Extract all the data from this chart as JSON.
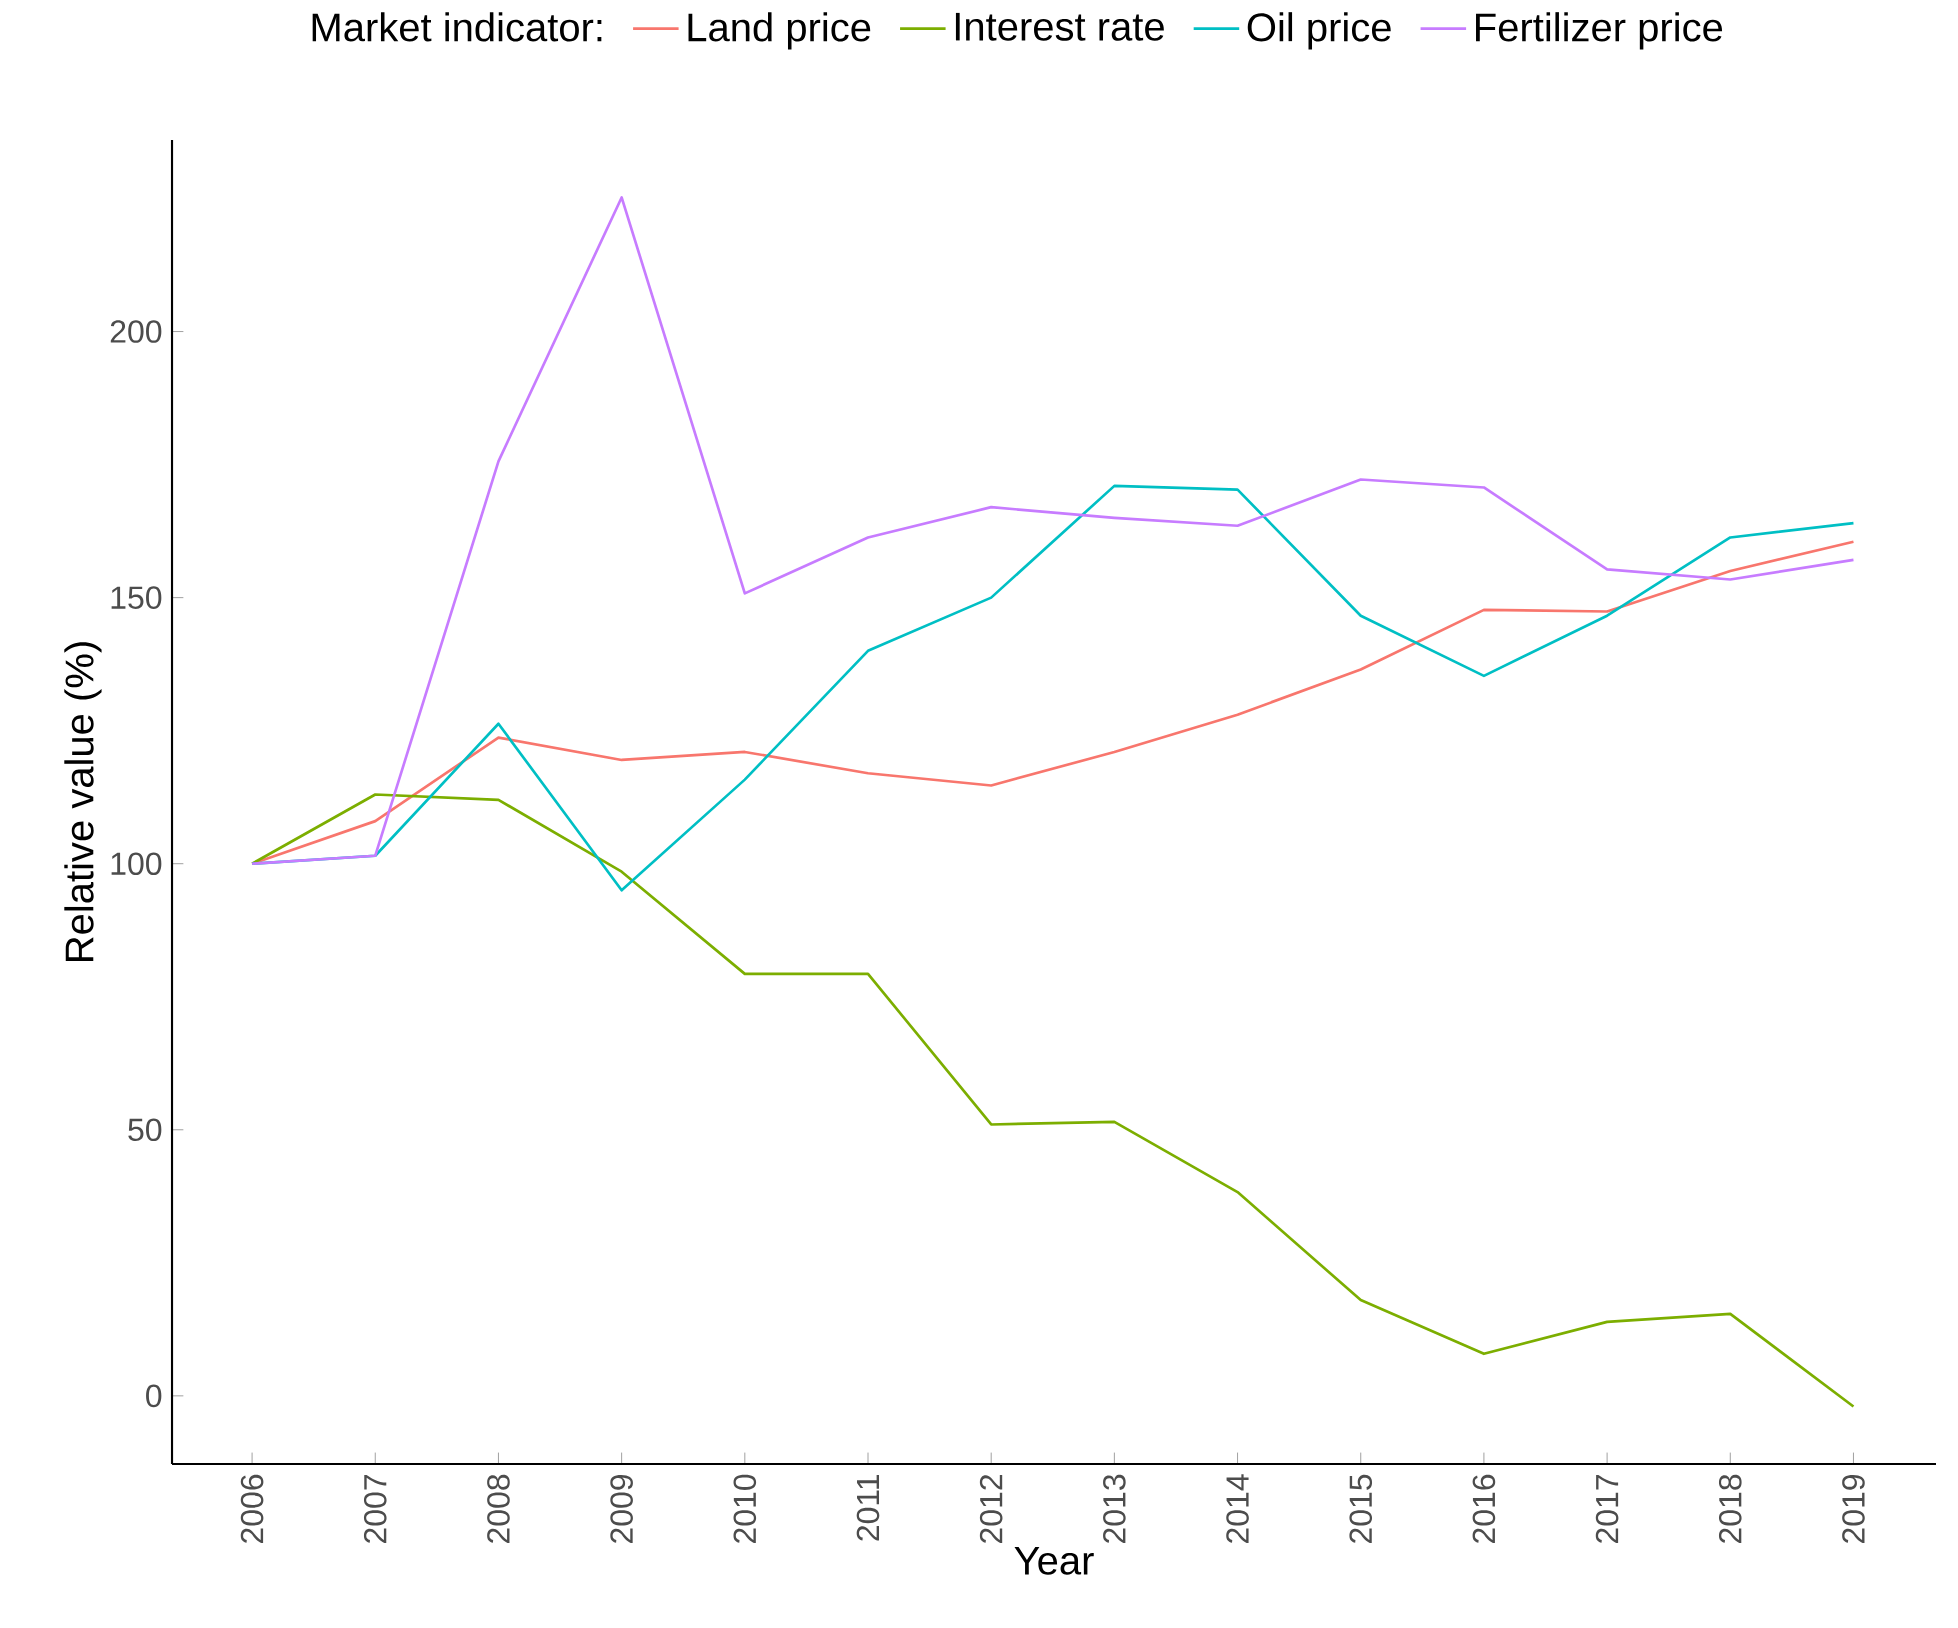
{
  "chart_data": {
    "type": "line",
    "xlabel": "Year",
    "ylabel": "Relative value (%)",
    "legend_title": "Market indicator:",
    "x": [
      2006,
      2007,
      2008,
      2009,
      2010,
      2011,
      2012,
      2013,
      2014,
      2015,
      2016,
      2017,
      2018,
      2019
    ],
    "series": [
      {
        "name": "Land price",
        "color": "#f8766d",
        "values": [
          100,
          108,
          123.7,
          119.5,
          121,
          117,
          114.7,
          121,
          128,
          136.5,
          147.7,
          147.4,
          155,
          160.5
        ]
      },
      {
        "name": "Interest rate",
        "color": "#7cae00",
        "values": [
          100,
          113,
          112,
          98.5,
          79.3,
          79.3,
          51,
          51.5,
          38.3,
          18,
          7.9,
          13.9,
          15.4,
          -2
        ]
      },
      {
        "name": "Oil price",
        "color": "#00bfc4",
        "values": [
          100,
          101.5,
          126.3,
          95,
          115.8,
          140,
          150,
          171,
          170.3,
          146.6,
          135.3,
          146.6,
          161.3,
          164
        ]
      },
      {
        "name": "Fertilizer price",
        "color": "#c77cff",
        "values": [
          100,
          101.5,
          175.6,
          225.2,
          150.8,
          161.3,
          167,
          165,
          163.5,
          172.2,
          170.7,
          155.3,
          153.4,
          157.1
        ]
      }
    ],
    "xlim": [
      2005.35,
      2019.67
    ],
    "ylim": [
      -12.8,
      236
    ],
    "xticks": [
      2006,
      2007,
      2008,
      2009,
      2010,
      2011,
      2012,
      2013,
      2014,
      2015,
      2016,
      2017,
      2018,
      2019
    ],
    "yticks": [
      0,
      50,
      100,
      150,
      200
    ],
    "grid": false,
    "legend": "top",
    "marker": "none",
    "line_style": "solid"
  }
}
